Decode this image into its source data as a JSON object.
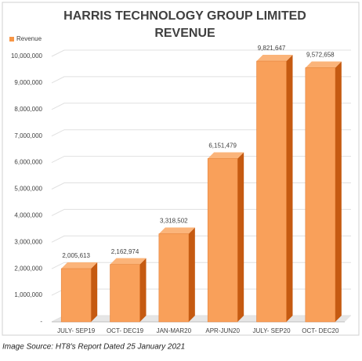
{
  "chart_data": {
    "type": "bar3d",
    "title": [
      "HARRIS TECHNOLOGY GROUP LIMITED",
      "REVENUE"
    ],
    "categories": [
      "JULY- SEP19",
      "OCT- DEC19",
      "JAN-MAR20",
      "APR-JUN20",
      "JULY- SEP20",
      "OCT- DEC20"
    ],
    "series": [
      {
        "name": "Revenue",
        "color": "#f79646",
        "values": [
          2005613,
          2162974,
          3318502,
          6151479,
          9821647,
          9572658
        ],
        "value_labels": [
          "2,005,613",
          "2,162,974",
          "3,318,502",
          "6,151,479",
          "9,821,647",
          "9,572,658"
        ]
      }
    ],
    "ylim": [
      0,
      10000000
    ],
    "yticks": [
      {
        "value": 0,
        "label": "-"
      },
      {
        "value": 1000000,
        "label": "1,000,000"
      },
      {
        "value": 2000000,
        "label": "2,000,000"
      },
      {
        "value": 3000000,
        "label": "3,000,000"
      },
      {
        "value": 4000000,
        "label": "4,000,000"
      },
      {
        "value": 5000000,
        "label": "5,000,000"
      },
      {
        "value": 6000000,
        "label": "6,000,000"
      },
      {
        "value": 7000000,
        "label": "7,000,000"
      },
      {
        "value": 8000000,
        "label": "8,000,000"
      },
      {
        "value": 9000000,
        "label": "9,000,000"
      },
      {
        "value": 10000000,
        "label": "10,000,000"
      }
    ],
    "grid": true,
    "legend": "top-left"
  },
  "caption": "Image Source: HT8's Report Dated 25 January 2021"
}
